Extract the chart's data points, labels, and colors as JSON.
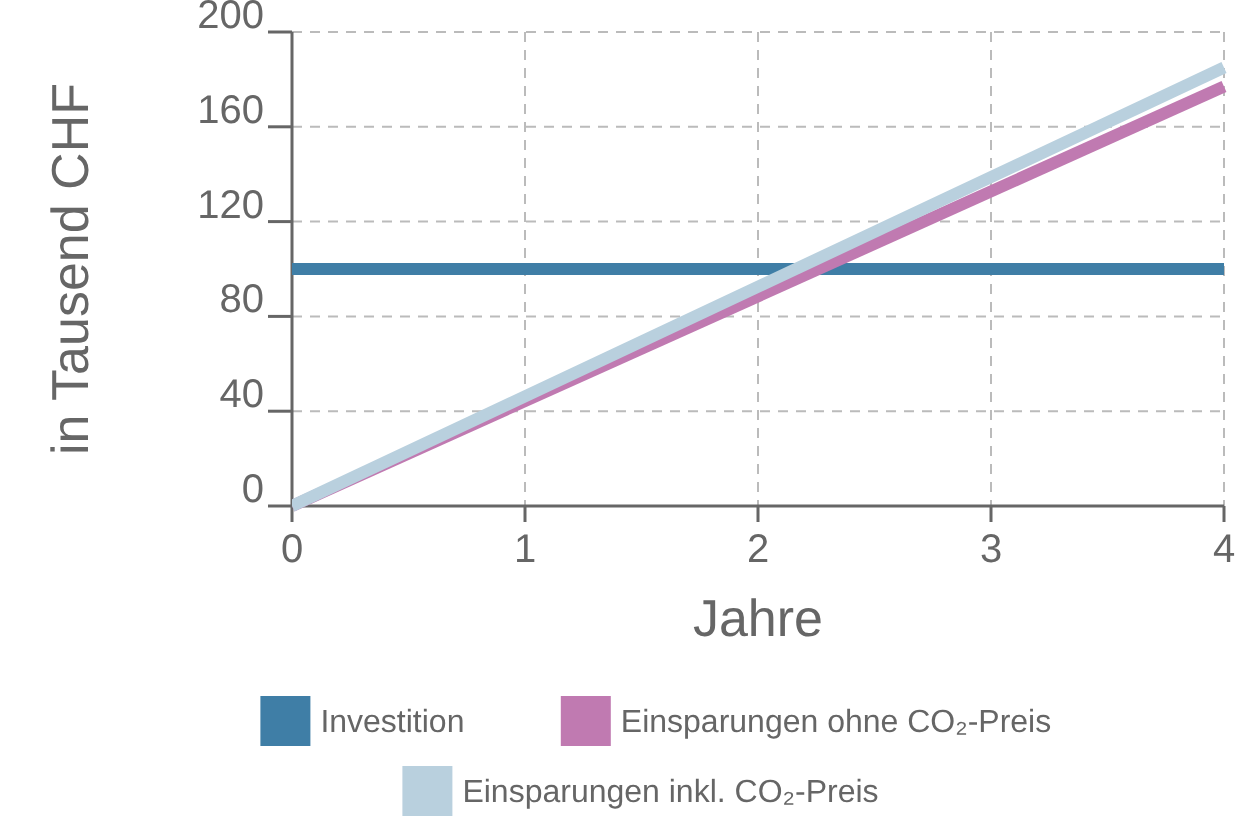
{
  "chart_data": {
    "type": "line",
    "xlabel": "Jahre",
    "ylabel": "in Tausend CHF",
    "x": [
      0,
      4
    ],
    "xlim": [
      0,
      4
    ],
    "xticks": [
      0,
      1,
      2,
      3,
      4
    ],
    "ylim": [
      0,
      200
    ],
    "yticks": [
      0,
      40,
      80,
      120,
      160,
      200
    ],
    "grid": true,
    "legend": "bottom",
    "line_style": "solid",
    "marker": "none",
    "series": [
      {
        "name": "Investition",
        "color": "#3f7ea6",
        "values": [
          100,
          100
        ]
      },
      {
        "name": "Einsparungen ohne CO₂-Preis",
        "color": "#c07ab1",
        "values": [
          0,
          177
        ]
      },
      {
        "name": "Einsparungen inkl. CO₂-Preis",
        "color": "#b9d0de",
        "values": [
          0,
          185
        ]
      }
    ]
  }
}
